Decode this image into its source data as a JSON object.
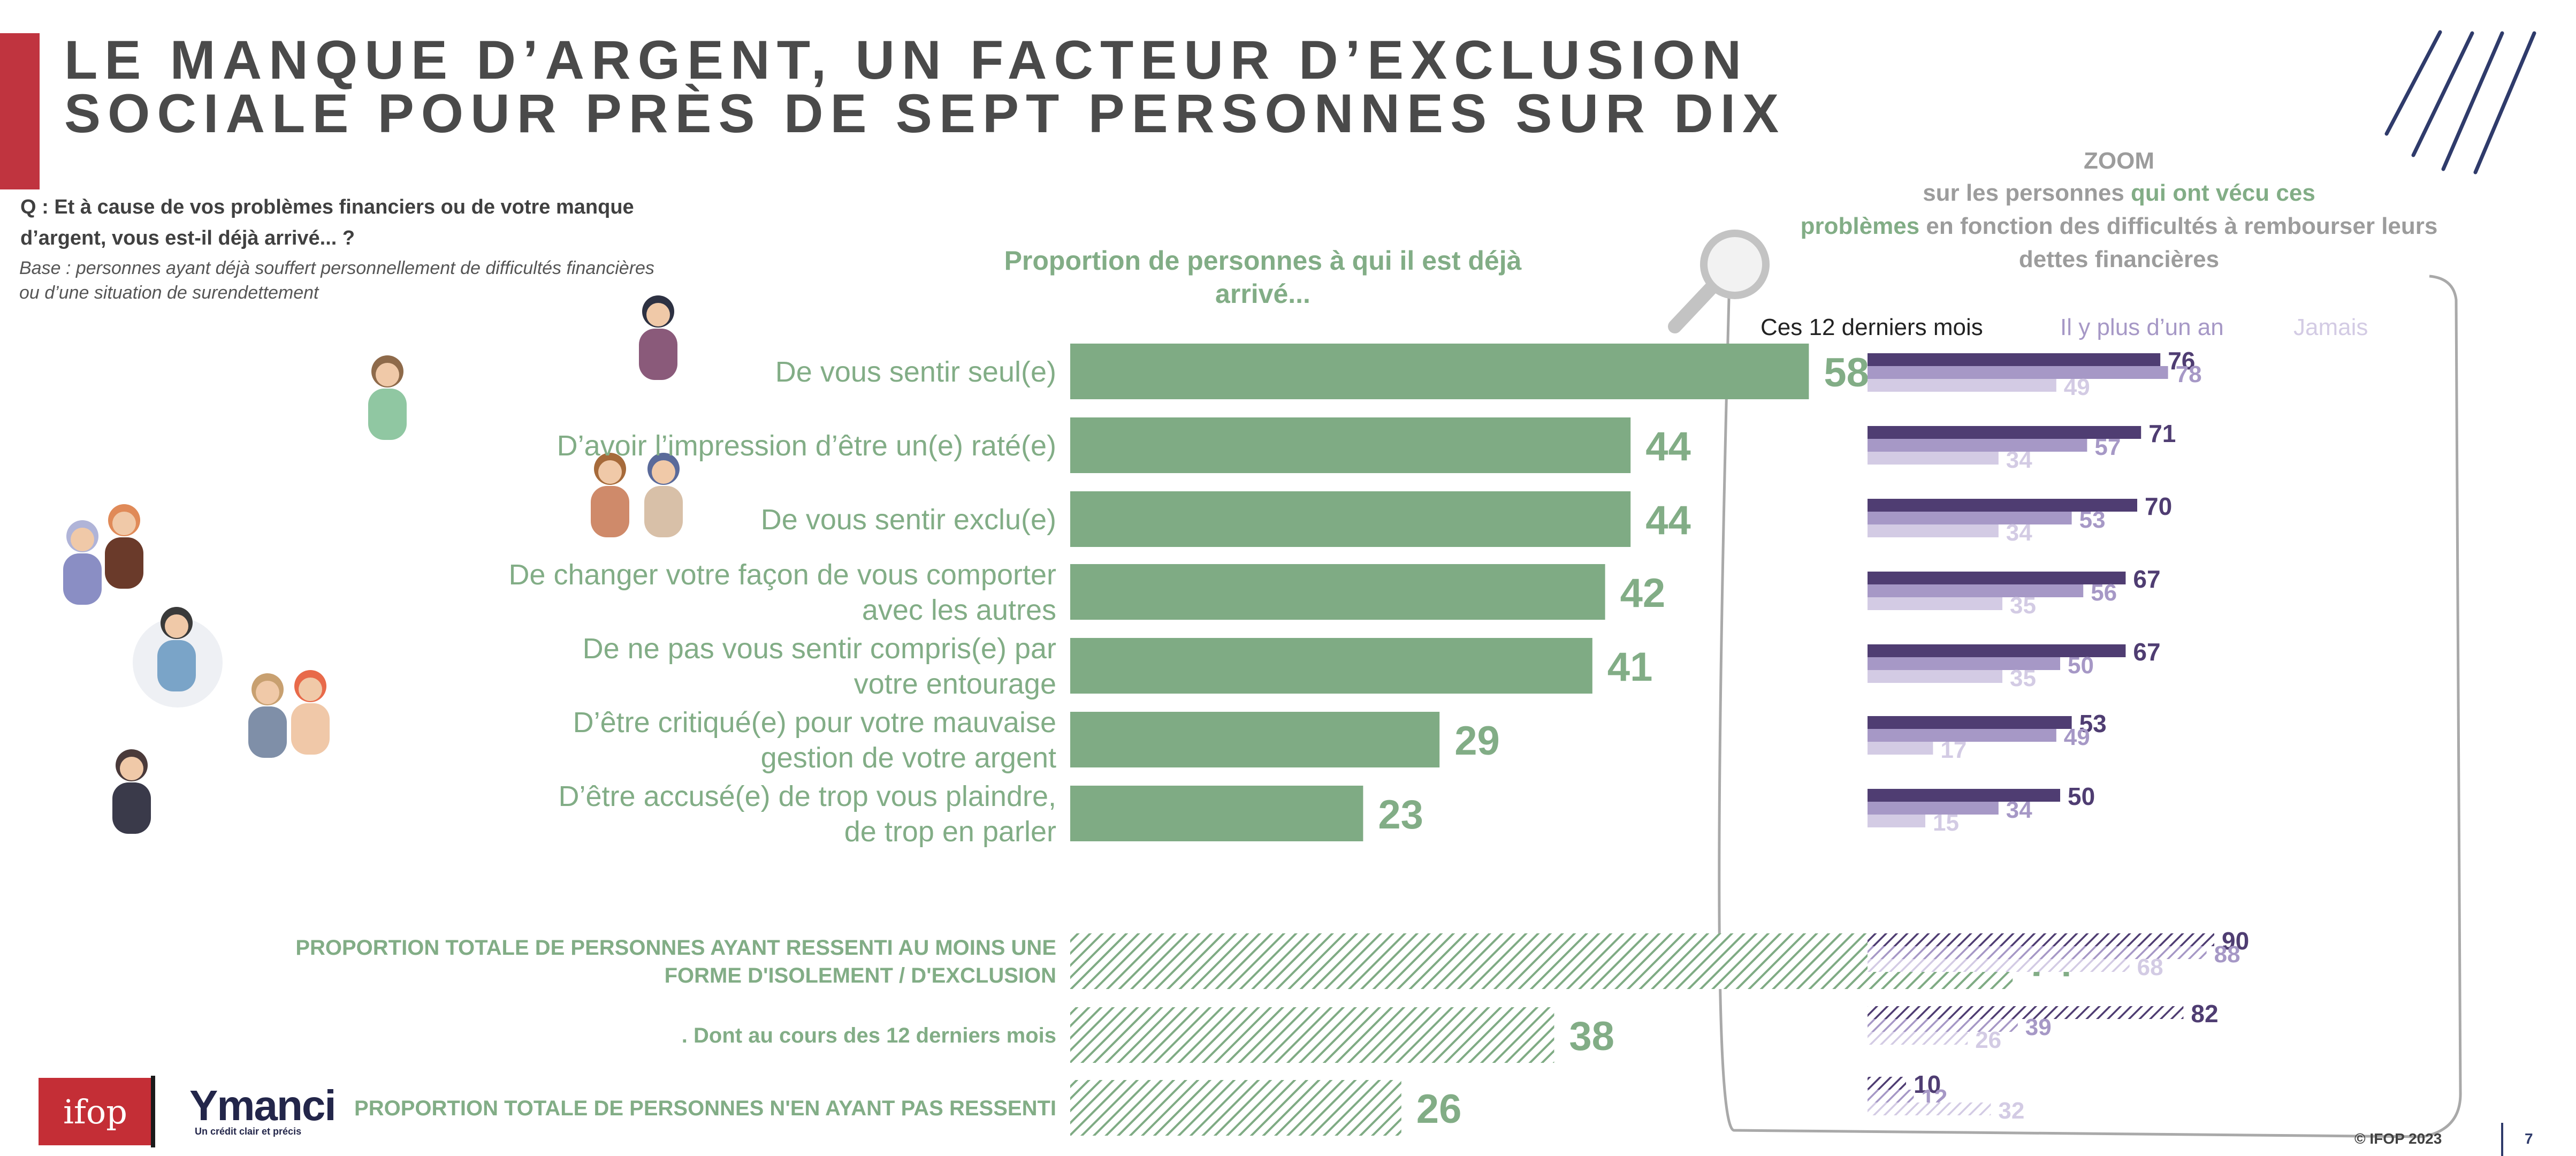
{
  "title": "LE MANQUE D’ARGENT, UN FACTEUR D’EXCLUSION\nSOCIALE POUR PRÈS DE SEPT PERSONNES SUR DIX",
  "question": "Q : Et à cause de vos problèmes financiers ou de votre manque d’argent, vous est-il déjà arrivé... ?",
  "base": "Base : personnes ayant déjà souffert personnellement de difficultés financières ou d’une situation de surendettement",
  "chart_heading": "Proportion de personnes à qui il est déjà arrivé...",
  "zoom": {
    "title": "ZOOM",
    "desc_before": "sur les personnes ",
    "desc_highlight_1": "qui ont vécu ces",
    "desc_highlight_2": "problèmes",
    "desc_after": " en fonction des difficultés à rembourser leurs dettes financières"
  },
  "colors": {
    "main_bar": "#7fab84",
    "main_label": "#82ad86",
    "zoom_dark": "#4f3d72",
    "zoom_mid": "#a698c6",
    "zoom_light": "#d3cbe4",
    "title": "#4a4a4a",
    "accent_red": "#c0343f",
    "navy": "#2f3b6b"
  },
  "icons": [
    "magnifier-icon",
    "person-icon",
    "decor-stripes"
  ],
  "chart_data": [
    {
      "type": "bar",
      "orientation": "horizontal",
      "title": "Proportion de personnes à qui il est déjà arrivé...",
      "categories": [
        "De vous sentir seul(e)",
        "D’avoir l’impression d’être un(e) raté(e)",
        "De vous sentir exclu(e)",
        "De changer votre façon de vous comporter avec les autres",
        "De ne pas vous sentir compris(e) par votre entourage",
        "D’être critiqué(e) pour votre mauvaise gestion de votre argent",
        "D’être accusé(e) de trop vous plaindre, de trop en parler"
      ],
      "values": [
        58,
        44,
        44,
        42,
        41,
        29,
        23
      ],
      "summary": [
        {
          "label": "PROPORTION TOTALE DE PERSONNES AYANT RESSENTI AU MOINS UNE FORME D'ISOLEMENT / D'EXCLUSION",
          "value": 74,
          "hatched": true
        },
        {
          "label": ". Dont au cours des 12 derniers mois",
          "value": 38,
          "hatched": true
        },
        {
          "label": "PROPORTION TOTALE DE PERSONNES N'EN AYANT PAS RESSENTI",
          "value": 26,
          "hatched": true
        }
      ]
    },
    {
      "type": "bar",
      "orientation": "horizontal",
      "title": "ZOOM",
      "series": [
        {
          "name": "Ces 12 derniers mois",
          "values": [
            76,
            71,
            70,
            67,
            67,
            53,
            50
          ],
          "summary_values": [
            90,
            82,
            10
          ]
        },
        {
          "name": "Il y plus d’un an",
          "values": [
            78,
            57,
            53,
            56,
            50,
            49,
            34
          ],
          "summary_values": [
            88,
            39,
            12
          ]
        },
        {
          "name": "Jamais",
          "values": [
            49,
            34,
            34,
            35,
            35,
            17,
            15
          ],
          "summary_values": [
            68,
            26,
            32
          ]
        }
      ]
    }
  ],
  "footer": {
    "ifop_logo": "ifop",
    "ymanci_logo": "Ymanci",
    "ymanci_tagline": "Un crédit clair et précis",
    "copyright": "© IFOP 2023",
    "page_number": "7"
  }
}
